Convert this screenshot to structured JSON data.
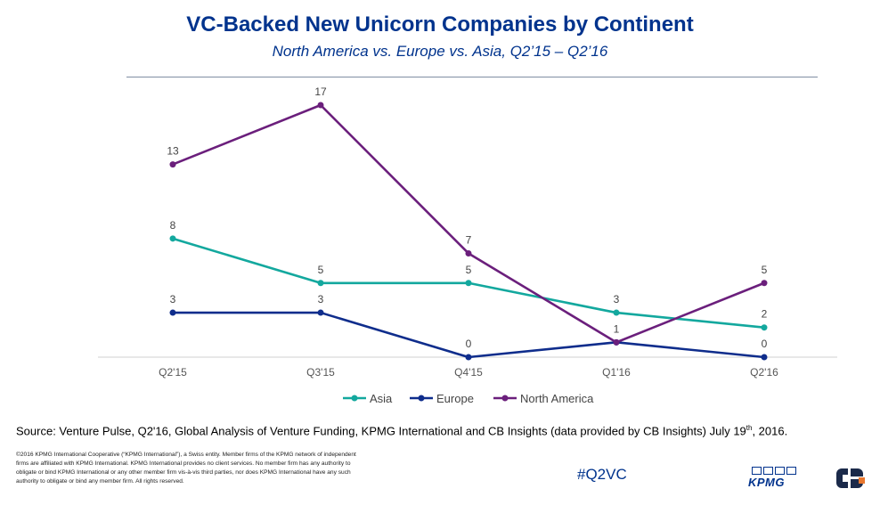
{
  "chart_data": {
    "type": "line",
    "title": "VC-Backed New Unicorn Companies by Continent",
    "subtitle": "North America vs. Europe vs. Asia, Q2’15 – Q2’16",
    "categories": [
      "Q2'15",
      "Q3'15",
      "Q4'15",
      "Q1'16",
      "Q2'16"
    ],
    "ylim": [
      0,
      17
    ],
    "xlabel": "",
    "ylabel": "",
    "grid": false,
    "legend_position": "bottom",
    "series": [
      {
        "name": "Asia",
        "color": "#13A89E",
        "values": [
          8,
          5,
          5,
          3,
          2
        ]
      },
      {
        "name": "Europe",
        "color": "#0F2D8C",
        "values": [
          3,
          3,
          0,
          1,
          0
        ]
      },
      {
        "name": "North America",
        "color": "#6B1F7C",
        "values": [
          13,
          17,
          7,
          1,
          5
        ]
      }
    ],
    "data_labels": [
      {
        "series": "Asia",
        "values": [
          8,
          5,
          5,
          3,
          2
        ],
        "show": [
          true,
          true,
          true,
          true,
          true
        ]
      },
      {
        "series": "Europe",
        "values": [
          3,
          3,
          0,
          1,
          0
        ],
        "show": [
          true,
          true,
          true,
          false,
          true
        ]
      },
      {
        "series": "North America",
        "values": [
          13,
          17,
          7,
          1,
          5
        ],
        "show": [
          true,
          true,
          true,
          true,
          true
        ]
      }
    ]
  },
  "footer": {
    "source_pre": "Source: Venture Pulse, Q2'16, Global Analysis of Venture Funding, KPMG International and CB Insights (data provided by CB Insights) July 19",
    "source_sup": "th",
    "source_post": ", 2016.",
    "copyright": "©2016 KPMG International Cooperative (“KPMG International”), a Swiss entity. Member firms of the KPMG network of independent firms are affiliated with KPMG International. KPMG International provides no client services. No member firm has any authority to obligate or bind KPMG International or any other member firm vis-à-vis third parties, nor does KPMG International have any such authority to obligate or bind any member firm. All rights reserved.",
    "hashtag": "#Q2VC",
    "kpmg_logo_text": "KPMG"
  },
  "colors": {
    "brand": "#00338D",
    "cb_logo": "#1B2A4A"
  }
}
